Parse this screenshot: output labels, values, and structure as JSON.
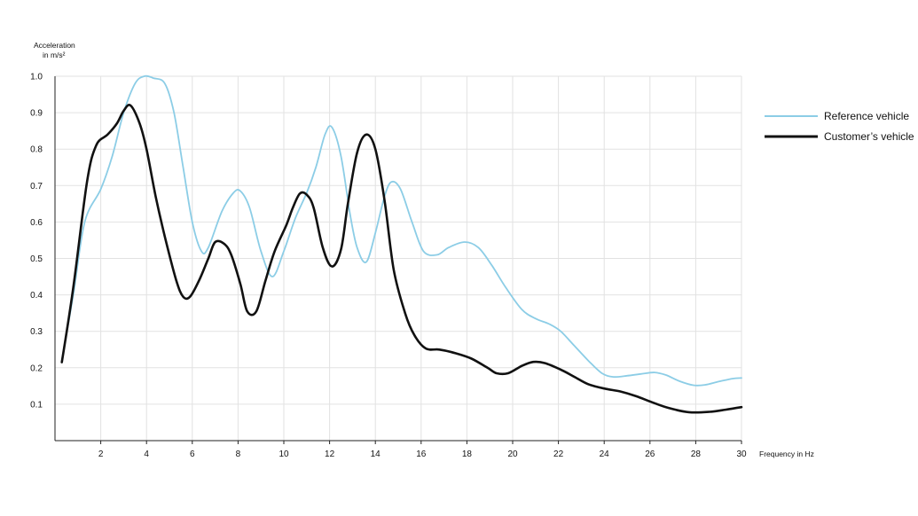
{
  "chart_data": {
    "type": "line",
    "ylabel_line1": "Acceleration",
    "ylabel_line2": "in m/s²",
    "xlabel": "Frequency in Hz",
    "xlim": [
      0,
      30
    ],
    "ylim": [
      0,
      1.0
    ],
    "xticks": [
      2,
      4,
      6,
      8,
      10,
      12,
      14,
      16,
      18,
      20,
      22,
      24,
      26,
      28,
      30
    ],
    "yticks": [
      0.1,
      0.2,
      0.3,
      0.4,
      0.5,
      0.6,
      0.7,
      0.8,
      0.9,
      1.0
    ],
    "ytick_labels": [
      "0.1",
      "0.2",
      "0.3",
      "0.4",
      "0.5",
      "0.6",
      "0.7",
      "0.8",
      "0.9",
      "1.0"
    ],
    "grid": true,
    "legend_position": "right",
    "series": [
      {
        "name": "Reference vehicle",
        "color": "#8ccde6",
        "points": [
          [
            0.3,
            0.22
          ],
          [
            0.8,
            0.4
          ],
          [
            1.3,
            0.6
          ],
          [
            2.0,
            0.69
          ],
          [
            2.5,
            0.78
          ],
          [
            3.0,
            0.9
          ],
          [
            3.5,
            0.98
          ],
          [
            3.9,
            1.0
          ],
          [
            4.3,
            0.995
          ],
          [
            4.8,
            0.98
          ],
          [
            5.2,
            0.9
          ],
          [
            5.6,
            0.75
          ],
          [
            6.0,
            0.6
          ],
          [
            6.4,
            0.52
          ],
          [
            6.7,
            0.53
          ],
          [
            7.3,
            0.63
          ],
          [
            7.8,
            0.68
          ],
          [
            8.1,
            0.685
          ],
          [
            8.5,
            0.64
          ],
          [
            9.0,
            0.52
          ],
          [
            9.5,
            0.45
          ],
          [
            10.0,
            0.52
          ],
          [
            10.5,
            0.61
          ],
          [
            11.0,
            0.68
          ],
          [
            11.4,
            0.75
          ],
          [
            11.8,
            0.84
          ],
          [
            12.1,
            0.86
          ],
          [
            12.5,
            0.78
          ],
          [
            12.9,
            0.62
          ],
          [
            13.2,
            0.53
          ],
          [
            13.6,
            0.49
          ],
          [
            14.0,
            0.57
          ],
          [
            14.4,
            0.67
          ],
          [
            14.7,
            0.71
          ],
          [
            15.1,
            0.69
          ],
          [
            15.6,
            0.6
          ],
          [
            16.1,
            0.52
          ],
          [
            16.7,
            0.51
          ],
          [
            17.2,
            0.53
          ],
          [
            17.9,
            0.545
          ],
          [
            18.5,
            0.53
          ],
          [
            19.1,
            0.48
          ],
          [
            19.7,
            0.42
          ],
          [
            20.4,
            0.36
          ],
          [
            21.0,
            0.335
          ],
          [
            21.6,
            0.32
          ],
          [
            22.1,
            0.3
          ],
          [
            22.7,
            0.26
          ],
          [
            23.3,
            0.22
          ],
          [
            23.9,
            0.185
          ],
          [
            24.4,
            0.175
          ],
          [
            25.0,
            0.178
          ],
          [
            25.6,
            0.183
          ],
          [
            26.2,
            0.187
          ],
          [
            26.7,
            0.18
          ],
          [
            27.3,
            0.163
          ],
          [
            27.9,
            0.152
          ],
          [
            28.4,
            0.153
          ],
          [
            29.0,
            0.162
          ],
          [
            29.6,
            0.17
          ],
          [
            30.0,
            0.172
          ]
        ]
      },
      {
        "name": "Customer’s vehicle",
        "color": "#111111",
        "points": [
          [
            0.3,
            0.215
          ],
          [
            0.8,
            0.42
          ],
          [
            1.4,
            0.71
          ],
          [
            1.8,
            0.81
          ],
          [
            2.3,
            0.84
          ],
          [
            2.7,
            0.87
          ],
          [
            3.0,
            0.905
          ],
          [
            3.3,
            0.92
          ],
          [
            3.7,
            0.87
          ],
          [
            4.0,
            0.8
          ],
          [
            4.4,
            0.67
          ],
          [
            4.8,
            0.56
          ],
          [
            5.3,
            0.44
          ],
          [
            5.6,
            0.395
          ],
          [
            5.9,
            0.395
          ],
          [
            6.3,
            0.44
          ],
          [
            6.7,
            0.5
          ],
          [
            7.0,
            0.545
          ],
          [
            7.4,
            0.54
          ],
          [
            7.7,
            0.51
          ],
          [
            8.1,
            0.43
          ],
          [
            8.4,
            0.355
          ],
          [
            8.8,
            0.355
          ],
          [
            9.2,
            0.44
          ],
          [
            9.6,
            0.52
          ],
          [
            10.1,
            0.59
          ],
          [
            10.4,
            0.64
          ],
          [
            10.7,
            0.678
          ],
          [
            11.0,
            0.675
          ],
          [
            11.3,
            0.64
          ],
          [
            11.7,
            0.53
          ],
          [
            12.1,
            0.478
          ],
          [
            12.5,
            0.525
          ],
          [
            12.8,
            0.65
          ],
          [
            13.2,
            0.79
          ],
          [
            13.6,
            0.84
          ],
          [
            14.0,
            0.8
          ],
          [
            14.4,
            0.66
          ],
          [
            14.8,
            0.47
          ],
          [
            15.3,
            0.35
          ],
          [
            15.7,
            0.29
          ],
          [
            16.2,
            0.253
          ],
          [
            16.8,
            0.25
          ],
          [
            17.5,
            0.24
          ],
          [
            18.2,
            0.225
          ],
          [
            18.9,
            0.2
          ],
          [
            19.3,
            0.185
          ],
          [
            19.8,
            0.185
          ],
          [
            20.4,
            0.205
          ],
          [
            20.9,
            0.216
          ],
          [
            21.4,
            0.213
          ],
          [
            22.1,
            0.195
          ],
          [
            22.7,
            0.175
          ],
          [
            23.3,
            0.155
          ],
          [
            24.0,
            0.143
          ],
          [
            24.7,
            0.135
          ],
          [
            25.4,
            0.122
          ],
          [
            26.1,
            0.105
          ],
          [
            26.8,
            0.09
          ],
          [
            27.7,
            0.078
          ],
          [
            28.6,
            0.079
          ],
          [
            29.3,
            0.085
          ],
          [
            30.0,
            0.092
          ]
        ]
      }
    ]
  }
}
